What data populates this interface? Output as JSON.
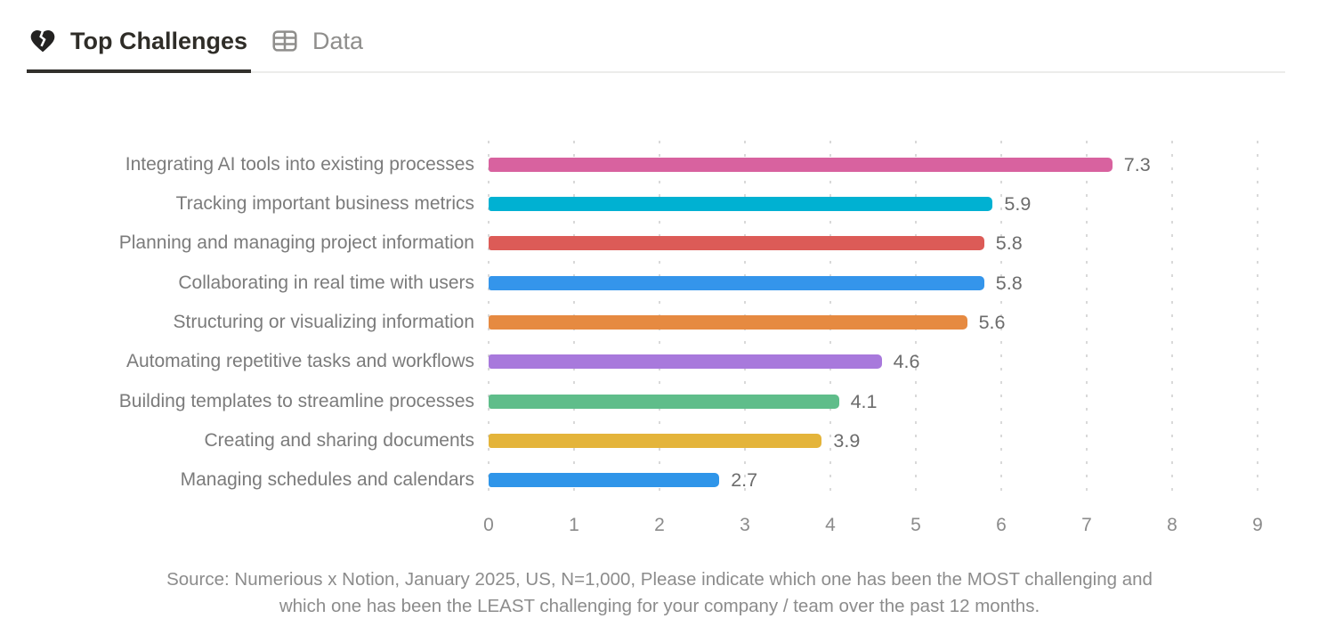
{
  "tabs": [
    {
      "label": "Top Challenges",
      "icon": "broken-heart-icon",
      "active": true
    },
    {
      "label": "Data",
      "icon": "table-icon",
      "active": false
    }
  ],
  "chart_data": {
    "type": "bar",
    "orientation": "horizontal",
    "title": "",
    "categories": [
      "Integrating AI tools into existing processes",
      "Tracking important business metrics",
      "Planning and managing project information",
      "Collaborating in real time with users",
      "Structuring or visualizing information",
      "Automating repetitive tasks and workflows",
      "Building templates to streamline processes",
      "Creating and sharing documents",
      "Managing schedules and calendars"
    ],
    "values": [
      7.3,
      5.9,
      5.8,
      5.8,
      5.6,
      4.6,
      4.1,
      3.9,
      2.7
    ],
    "value_labels": [
      "7.3",
      "5.9",
      "5.8",
      "5.8",
      "5.6",
      "4.6",
      "4.1",
      "3.9",
      "2.7"
    ],
    "bar_colors": [
      "#d8629f",
      "#00b1d2",
      "#dc5b57",
      "#3495eb",
      "#e68a41",
      "#a879dc",
      "#5fbd8a",
      "#e4b43a",
      "#2f95e9"
    ],
    "xlim": [
      0,
      9
    ],
    "x_ticks": [
      "0",
      "1",
      "2",
      "3",
      "4",
      "5",
      "6",
      "7",
      "8",
      "9"
    ],
    "grid": "vertical-dotted",
    "legend": "none",
    "xlabel": "",
    "ylabel": ""
  },
  "source_note": {
    "lines": [
      "Source: Numerious x Notion, January 2025, US, N=1,000, Please indicate which one has been the MOST challenging and",
      "which one has been the LEAST challenging for your company /  team over the past 12 months."
    ]
  },
  "colors": {
    "tab_active_text": "#2f2d28",
    "tab_active_underline": "#32302c",
    "tab_inactive_text": "#8f8e8c",
    "tab_divider": "#ececea",
    "gridline": "#d9d9d9",
    "category_text": "#7b7b7b",
    "value_text": "#6c6c6c",
    "tick_text": "#8b8b8b",
    "source_text": "#8c8c8c"
  }
}
